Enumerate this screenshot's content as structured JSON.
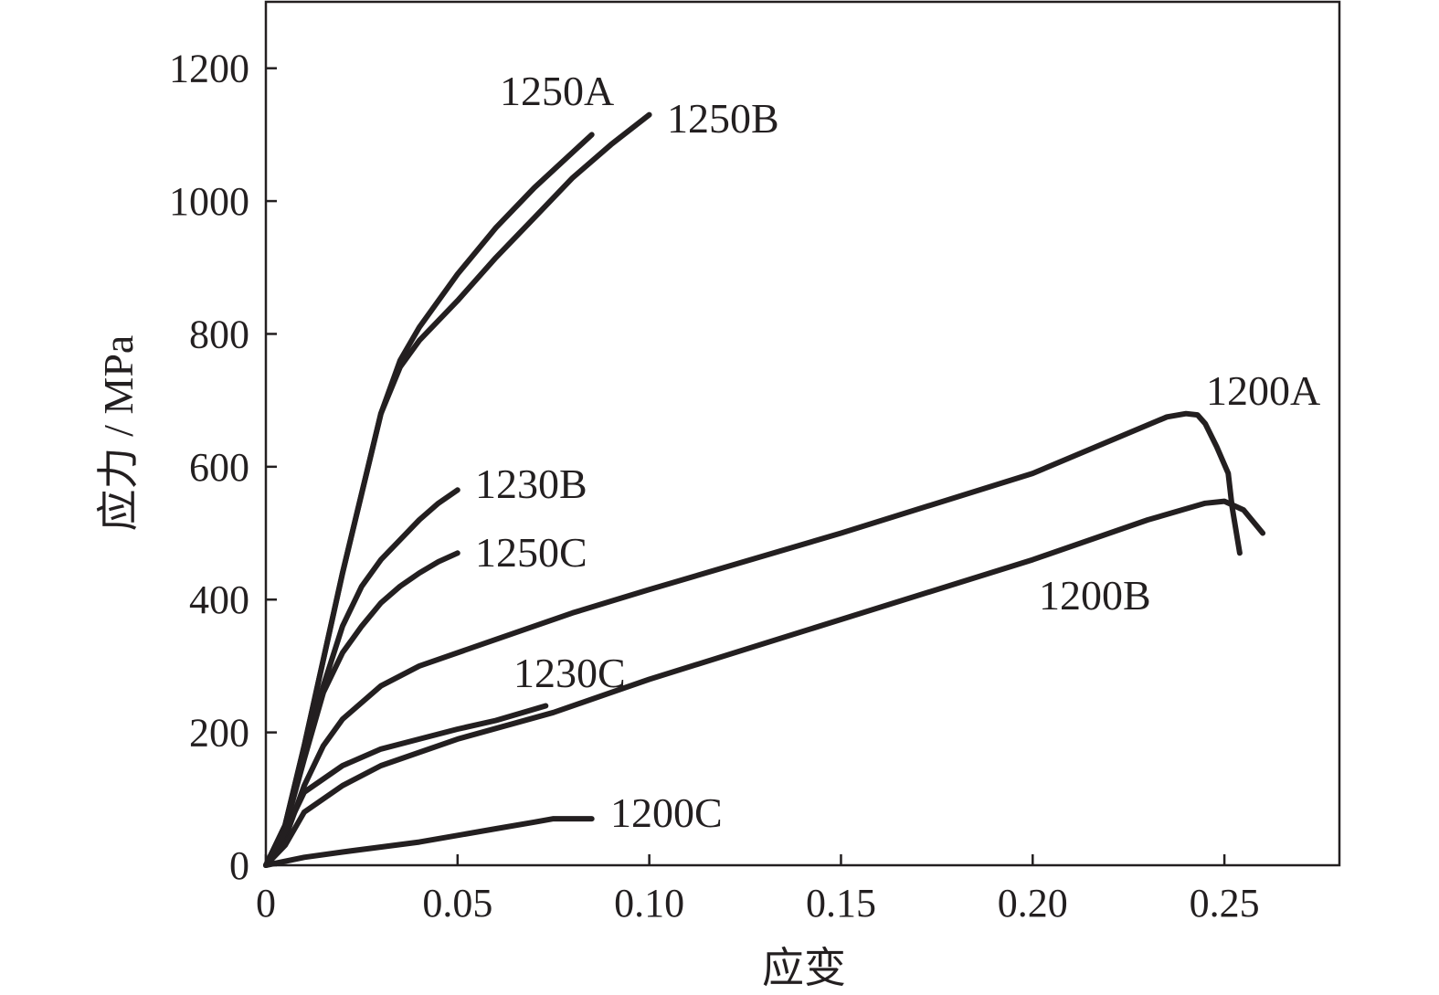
{
  "chart_data": {
    "type": "line",
    "title": "",
    "xlabel": "应变",
    "ylabel": "应力 / MPa",
    "xlim": [
      0,
      0.28
    ],
    "ylim": [
      0,
      1300
    ],
    "xticks": [
      0,
      0.05,
      0.1,
      0.15,
      0.2,
      0.25
    ],
    "xtick_labels": [
      "0",
      "0.05",
      "0.10",
      "0.15",
      "0.20",
      "0.25"
    ],
    "yticks": [
      0,
      200,
      400,
      600,
      800,
      1000,
      1200
    ],
    "ytick_labels": [
      "0",
      "200",
      "400",
      "600",
      "800",
      "1000",
      "1200"
    ],
    "grid": false,
    "legend": "none",
    "series": [
      {
        "name": "1250A",
        "x": [
          0,
          0.005,
          0.01,
          0.02,
          0.03,
          0.035,
          0.04,
          0.05,
          0.06,
          0.07,
          0.085
        ],
        "y": [
          0,
          60,
          180,
          440,
          680,
          760,
          810,
          890,
          960,
          1020,
          1100
        ]
      },
      {
        "name": "1250B",
        "x": [
          0,
          0.005,
          0.01,
          0.02,
          0.03,
          0.035,
          0.04,
          0.05,
          0.06,
          0.07,
          0.08,
          0.09,
          0.1
        ],
        "y": [
          0,
          60,
          180,
          440,
          680,
          750,
          790,
          850,
          915,
          975,
          1035,
          1085,
          1130
        ]
      },
      {
        "name": "1230B",
        "x": [
          0,
          0.005,
          0.01,
          0.015,
          0.02,
          0.025,
          0.03,
          0.035,
          0.04,
          0.045,
          0.05
        ],
        "y": [
          0,
          60,
          170,
          270,
          360,
          420,
          460,
          490,
          520,
          545,
          565
        ]
      },
      {
        "name": "1250C",
        "x": [
          0,
          0.005,
          0.01,
          0.015,
          0.02,
          0.025,
          0.03,
          0.035,
          0.04,
          0.045,
          0.05
        ],
        "y": [
          0,
          55,
          160,
          260,
          320,
          360,
          395,
          420,
          440,
          457,
          470
        ]
      },
      {
        "name": "1200A",
        "x": [
          0,
          0.005,
          0.01,
          0.015,
          0.02,
          0.03,
          0.04,
          0.06,
          0.08,
          0.1,
          0.15,
          0.2,
          0.235,
          0.24,
          0.243,
          0.245,
          0.248,
          0.251,
          0.252,
          0.254
        ],
        "y": [
          0,
          40,
          120,
          180,
          220,
          270,
          300,
          340,
          380,
          415,
          500,
          590,
          675,
          680,
          678,
          665,
          630,
          590,
          540,
          470
        ]
      },
      {
        "name": "1200B",
        "x": [
          0,
          0.005,
          0.01,
          0.02,
          0.03,
          0.05,
          0.075,
          0.1,
          0.15,
          0.2,
          0.23,
          0.245,
          0.25,
          0.255,
          0.26
        ],
        "y": [
          0,
          30,
          80,
          120,
          150,
          190,
          230,
          280,
          370,
          460,
          520,
          545,
          548,
          535,
          500
        ]
      },
      {
        "name": "1230C",
        "x": [
          0,
          0.005,
          0.01,
          0.02,
          0.03,
          0.04,
          0.05,
          0.06,
          0.073
        ],
        "y": [
          0,
          50,
          110,
          150,
          175,
          190,
          205,
          218,
          240
        ]
      },
      {
        "name": "1200C",
        "x": [
          0,
          0.01,
          0.02,
          0.04,
          0.06,
          0.07,
          0.075,
          0.085
        ],
        "y": [
          0,
          12,
          20,
          35,
          55,
          65,
          70,
          70
        ]
      }
    ]
  }
}
